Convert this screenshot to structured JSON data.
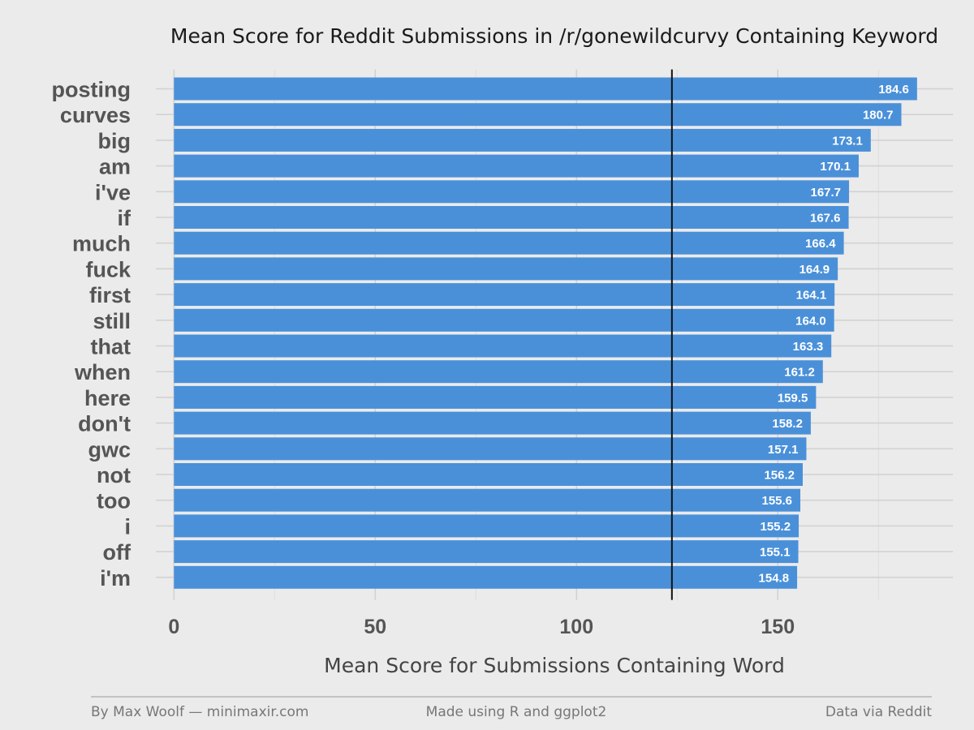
{
  "chart_data": {
    "type": "bar",
    "orientation": "horizontal",
    "title": "Mean Score for Reddit Submissions in /r/gonewildcurvy Containing Keyword",
    "xlabel": "Mean Score for Submissions Containing Word",
    "ylabel": "",
    "categories": [
      "posting",
      "curves",
      "big",
      "am",
      "i've",
      "if",
      "much",
      "fuck",
      "first",
      "still",
      "that",
      "when",
      "here",
      "don't",
      "gwc",
      "not",
      "too",
      "i",
      "off",
      "i'm"
    ],
    "values": [
      184.6,
      180.7,
      173.1,
      170.1,
      167.7,
      167.6,
      166.4,
      164.9,
      164.1,
      164.0,
      163.3,
      161.2,
      159.5,
      158.2,
      157.1,
      156.2,
      155.6,
      155.2,
      155.1,
      154.8
    ],
    "value_labels": [
      "184.6",
      "180.7",
      "173.1",
      "170.1",
      "167.7",
      "167.6",
      "166.4",
      "164.9",
      "164.1",
      "164.0",
      "163.3",
      "161.2",
      "159.5",
      "158.2",
      "157.1",
      "156.2",
      "155.6",
      "155.2",
      "155.1",
      "154.8"
    ],
    "xlim": [
      -4.5,
      193.5
    ],
    "xticks": [
      0,
      50,
      100,
      150
    ],
    "xtick_labels": [
      "0",
      "50",
      "100",
      "150"
    ],
    "reference_line": 123.7,
    "bar_color": "#4a90d9",
    "reference_line_color": "#111111",
    "grid": true
  },
  "footer": {
    "left": "By Max Woolf — minimaxir.com",
    "center": "Made using R and ggplot2",
    "right": "Data via Reddit"
  }
}
